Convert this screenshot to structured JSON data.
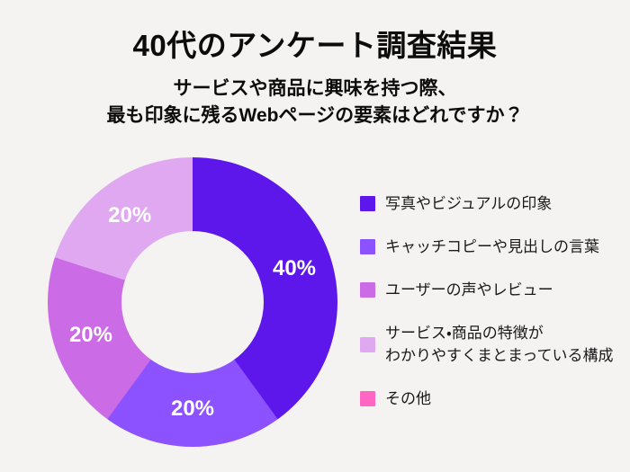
{
  "page": {
    "background_color": "#F4F3F1"
  },
  "header": {
    "title": "40代のアンケート調査結果",
    "subtitle_lines": [
      "サービスや商品に興味を持つ際、",
      "最も印象に残るWebページの要素はどれですか？"
    ]
  },
  "chart_data": {
    "type": "pie",
    "variant": "donut",
    "title": "40代のアンケート調査結果",
    "question": "サービスや商品に興味を持つ際、最も印象に残るWebページの要素はどれですか？",
    "unit": "%",
    "start_angle_deg": 0,
    "direction": "clockwise",
    "inner_radius_ratio": 0.49,
    "legend_position": "right",
    "data_label_color": "#FFFFFF",
    "hole_color": "#F4F3F1",
    "slices": [
      {
        "label": "写真やビジュアルの印象",
        "value": 40,
        "color": "#5E17EB",
        "data_label": "40%"
      },
      {
        "label": "キャッチコピーや見出しの言葉",
        "value": 20,
        "color": "#8C52FF",
        "data_label": "20%"
      },
      {
        "label": "ユーザーの声やレビュー",
        "value": 20,
        "color": "#CB6CE6",
        "data_label": "20%"
      },
      {
        "label": "サービス・商品の特徴が\nわかりやすくまとまっている構成",
        "value": 20,
        "color": "#DFA8F0",
        "data_label": "20%"
      },
      {
        "label": "その他",
        "value": 0,
        "color": "#FF66C4",
        "data_label": ""
      }
    ]
  }
}
